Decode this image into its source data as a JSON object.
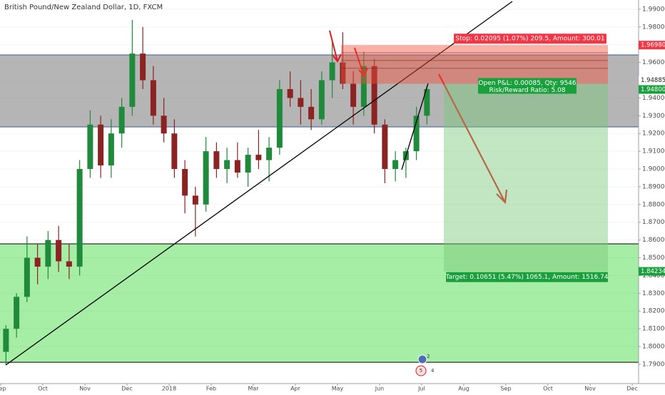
{
  "chart_data": {
    "type": "candlestick",
    "title": "British Pound/New Zealand Dollar, 1D, FXCM",
    "categories": [
      "Sep",
      null,
      null,
      null,
      "Oct",
      null,
      null,
      null,
      "Nov",
      null,
      null,
      null,
      "Dec",
      null,
      null,
      null,
      "2018",
      null,
      null,
      null,
      "Feb",
      null,
      null,
      null,
      "Mar",
      null,
      null,
      null,
      "Apr",
      null,
      null,
      null,
      "May",
      null,
      null,
      null,
      "Jun",
      null,
      null,
      null,
      "Jul",
      null,
      null,
      null,
      "Aug",
      null,
      null,
      null,
      "Sep",
      null,
      null,
      null,
      "Oct",
      null,
      null,
      null,
      "Nov",
      null,
      null,
      null,
      "Dec",
      null,
      null,
      null
    ],
    "open": [
      1.797,
      1.81,
      1.828,
      1.85,
      1.845,
      1.86,
      1.848,
      1.845,
      1.9,
      1.925,
      1.902,
      1.92,
      1.935,
      1.965,
      1.95,
      1.93,
      1.92,
      1.9,
      1.885,
      1.88,
      1.91,
      1.9,
      1.905,
      1.898,
      1.908,
      1.905,
      1.912,
      1.945,
      1.94,
      1.935,
      1.928,
      1.95,
      1.96,
      1.948,
      1.935,
      1.958,
      1.925,
      1.9,
      1.905,
      1.91,
      1.93,
      null,
      null,
      null,
      null,
      null,
      null,
      null,
      null,
      null,
      null,
      null,
      null,
      null,
      null,
      null,
      null,
      null,
      null,
      null,
      null,
      null,
      null,
      null
    ],
    "high": [
      1.812,
      1.83,
      1.862,
      1.858,
      1.865,
      1.868,
      1.858,
      1.905,
      1.933,
      1.93,
      1.928,
      1.94,
      1.984,
      1.98,
      1.958,
      1.94,
      1.928,
      1.905,
      1.89,
      1.918,
      1.915,
      1.912,
      1.915,
      1.912,
      1.922,
      1.918,
      1.95,
      1.955,
      1.95,
      1.945,
      1.955,
      1.972,
      1.977,
      1.955,
      1.966,
      1.962,
      1.928,
      1.91,
      1.912,
      1.935,
      1.947,
      null,
      null,
      null,
      null,
      null,
      null,
      null,
      null,
      null,
      null,
      null,
      null,
      null,
      null,
      null,
      null,
      null,
      null,
      null,
      null,
      null,
      null,
      null
    ],
    "low": [
      1.79,
      1.805,
      1.825,
      1.835,
      1.838,
      1.842,
      1.838,
      1.84,
      1.895,
      1.895,
      1.895,
      1.912,
      1.93,
      1.945,
      1.925,
      1.915,
      1.895,
      1.875,
      1.862,
      1.876,
      1.895,
      1.892,
      1.895,
      1.89,
      1.9,
      1.893,
      1.908,
      1.935,
      1.925,
      1.922,
      1.925,
      1.94,
      1.945,
      1.925,
      1.93,
      1.92,
      1.892,
      1.893,
      1.895,
      1.905,
      1.925,
      null,
      null,
      null,
      null,
      null,
      null,
      null,
      null,
      null,
      null,
      null,
      null,
      null,
      null,
      null,
      null,
      null,
      null,
      null,
      null,
      null,
      null,
      null
    ],
    "close": [
      1.81,
      1.828,
      1.85,
      1.845,
      1.86,
      1.848,
      1.845,
      1.9,
      1.925,
      1.902,
      1.92,
      1.935,
      1.965,
      1.95,
      1.93,
      1.92,
      1.9,
      1.885,
      1.88,
      1.91,
      1.9,
      1.905,
      1.898,
      1.908,
      1.905,
      1.912,
      1.945,
      1.94,
      1.935,
      1.928,
      1.95,
      1.96,
      1.948,
      1.935,
      1.958,
      1.925,
      1.9,
      1.905,
      1.91,
      1.93,
      1.945,
      null,
      null,
      null,
      null,
      null,
      null,
      null,
      null,
      null,
      null,
      null,
      null,
      null,
      null,
      null,
      null,
      null,
      null,
      null,
      null,
      null,
      null,
      null
    ],
    "up_color": "#1f8a3c",
    "down_color": "#8b2323",
    "ylim": [
      1.77912,
      1.99518
    ],
    "yticks": [
      {
        "value": 1.79,
        "label": "1.79000"
      },
      {
        "value": 1.8,
        "label": "1.80000"
      },
      {
        "value": 1.81,
        "label": "1.81000"
      },
      {
        "value": 1.82,
        "label": "1.82000"
      },
      {
        "value": 1.83,
        "label": "1.83000"
      },
      {
        "value": 1.84,
        "label": "1.84000"
      },
      {
        "value": 1.85,
        "label": "1.85000"
      },
      {
        "value": 1.86,
        "label": "1.86000"
      },
      {
        "value": 1.87,
        "label": "1.87000"
      },
      {
        "value": 1.88,
        "label": "1.88000"
      },
      {
        "value": 1.89,
        "label": "1.89000"
      },
      {
        "value": 1.9,
        "label": "1.90000"
      },
      {
        "value": 1.91,
        "label": "1.91000"
      },
      {
        "value": 1.92,
        "label": "1.92000"
      },
      {
        "value": 1.93,
        "label": "1.93000"
      },
      {
        "value": 1.94,
        "label": "1.94000"
      },
      {
        "value": 1.95,
        "label": "1.95000"
      },
      {
        "value": 1.96,
        "label": "1.96000"
      },
      {
        "value": 1.97,
        "label": "1.97000"
      },
      {
        "value": 1.98,
        "label": "1.98000"
      },
      {
        "value": 1.99,
        "label": "1.99000"
      }
    ],
    "resistance_zone": [
      1.92369,
      1.96426
    ],
    "support_zone": [
      1.79112,
      1.85783
    ],
    "position": {
      "stop": {
        "value": 1.9698,
        "label": "1.96980"
      },
      "current": {
        "value": 1.94885,
        "label": "1.94885"
      },
      "entry": {
        "value": 1.948,
        "label": "1.94800"
      },
      "target": {
        "value": 1.84234,
        "label": "1.84234"
      },
      "stop_text": "Stop: 0.02095 (1.07%) 209.5, Amount: 300.01",
      "pnl_text": "Open P&L: 0.00085, Qty: 9546",
      "rr_text": "Risk/Reward Ratio: 5.08",
      "target_text": "Target: 0.10651 (5.47%) 1065.1, Amount: 1516.74"
    },
    "event_badges": [
      "2",
      "5",
      "4"
    ]
  }
}
